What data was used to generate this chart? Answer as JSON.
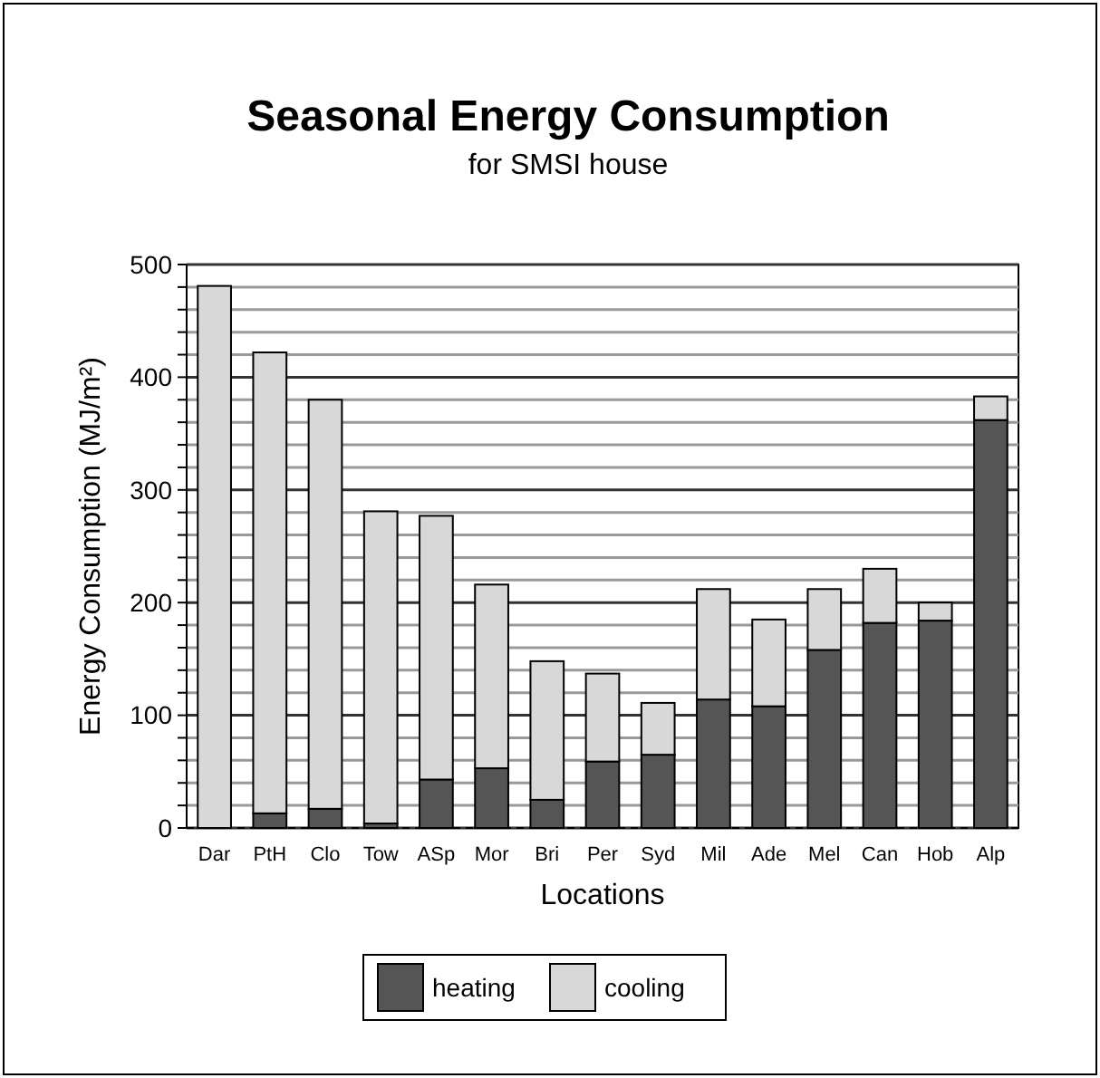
{
  "chart_data": {
    "type": "bar",
    "title": "Seasonal Energy Consumption",
    "subtitle": "for SMSI house",
    "xlabel": "Locations",
    "ylabel": "Energy Consumption (MJ/m²)",
    "categories": [
      "Dar",
      "PtH",
      "Clo",
      "Tow",
      "ASp",
      "Mor",
      "Bri",
      "Per",
      "Syd",
      "Mil",
      "Ade",
      "Mel",
      "Can",
      "Hob",
      "Alp"
    ],
    "stacked": true,
    "series": [
      {
        "name": "heating",
        "color": "#555555",
        "values": [
          0,
          13,
          17,
          4,
          43,
          53,
          25,
          59,
          65,
          114,
          108,
          158,
          182,
          184,
          362
        ]
      },
      {
        "name": "cooling",
        "color": "#d8d8d8",
        "values": [
          481,
          409,
          363,
          277,
          234,
          163,
          123,
          78,
          46,
          98,
          77,
          54,
          48,
          16,
          21
        ]
      }
    ],
    "ylim": [
      0,
      500
    ],
    "yticks": [
      0,
      {
        "value": 20,
        "label": null
      },
      {
        "value": 40,
        "label": null
      },
      {
        "value": 60,
        "label": null
      },
      {
        "value": 80,
        "label": null
      },
      100,
      {
        "value": 120,
        "label": null
      },
      {
        "value": 140,
        "label": null
      },
      {
        "value": 160,
        "label": null
      },
      {
        "value": 180,
        "label": null
      },
      200,
      {
        "value": 220,
        "label": null
      },
      {
        "value": 240,
        "label": null
      },
      {
        "value": 260,
        "label": null
      },
      {
        "value": 280,
        "label": null
      },
      300,
      {
        "value": 320,
        "label": null
      },
      {
        "value": 340,
        "label": null
      },
      {
        "value": 360,
        "label": null
      },
      {
        "value": 380,
        "label": null
      },
      400,
      {
        "value": 420,
        "label": null
      },
      {
        "value": 440,
        "label": null
      },
      {
        "value": 460,
        "label": null
      },
      {
        "value": 480,
        "label": null
      },
      500
    ],
    "grid": "y",
    "legend": "bottom"
  }
}
